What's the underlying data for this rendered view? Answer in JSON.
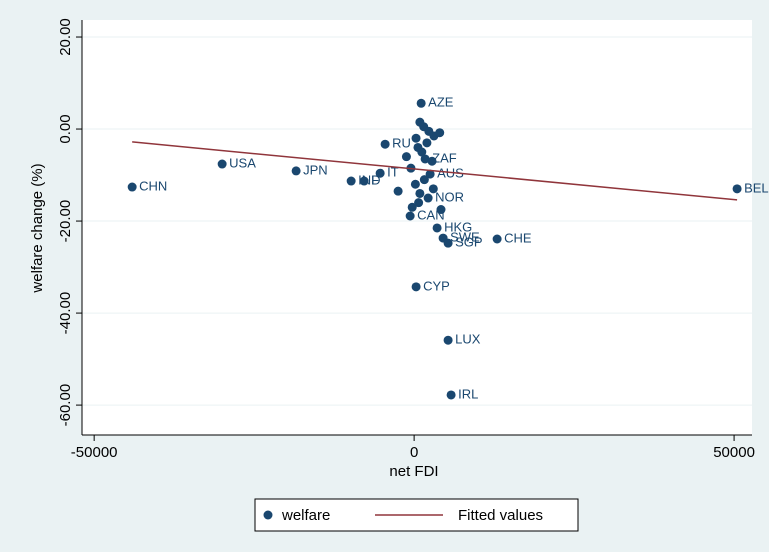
{
  "chart_data": {
    "type": "scatter",
    "x_label": "net FDI",
    "y_label": "welfare change (%)",
    "xlim": [
      -51900,
      52800
    ],
    "xticks": [
      -50000,
      0,
      50000
    ],
    "ylim": [
      -66.5,
      23.7
    ],
    "yticks": [
      {
        "value": -60,
        "label": "-60.00"
      },
      {
        "value": -40,
        "label": "-40.00"
      },
      {
        "value": -20,
        "label": "-20.00"
      },
      {
        "value": 0,
        "label": "0.00"
      },
      {
        "value": 20,
        "label": "20.00"
      }
    ],
    "grid": true,
    "legend": "bottom",
    "series": [
      {
        "name": "welfare",
        "type": "scatter",
        "color": "#1a476f",
        "x": [
          1100,
          -44060,
          -30000,
          -18440,
          -9840,
          50470,
          310,
          5310,
          5780,
          3590,
          12970,
          4530,
          5310,
          -4530,
          -7810,
          -5310,
          2190,
          -620,
          2500,
          1720,
          900,
          1500,
          2300,
          3100,
          4000,
          300,
          600,
          1200,
          2000,
          2800,
          -500,
          -1200,
          -2500,
          200,
          900,
          1600,
          3000,
          4200,
          -300,
          700
        ],
        "values": [
          5.6,
          -12.6,
          -7.6,
          -9.1,
          -11.3,
          -13.0,
          -34.3,
          -45.9,
          -57.8,
          -21.5,
          -23.9,
          -23.7,
          -24.8,
          -3.3,
          -11.3,
          -9.6,
          -15.0,
          -18.9,
          -9.8,
          -6.5,
          1.5,
          0.5,
          -0.5,
          -1.5,
          -0.8,
          -2.0,
          -4.0,
          -5.0,
          -3.0,
          -7.0,
          -8.5,
          -6.0,
          -13.5,
          -12.0,
          -14.0,
          -11.0,
          -13.0,
          -17.5,
          -17.0,
          -16.0
        ],
        "labels": [
          "AZE",
          "CHN",
          "USA",
          "JPN",
          "IND",
          "BEL",
          "CYP",
          "LUX",
          "IRL",
          "HKG",
          "CHE",
          "SWE",
          "SGP",
          "RU",
          "F",
          "IT",
          "NOR",
          "CAN",
          "AUS",
          "ZAF",
          null,
          null,
          null,
          null,
          null,
          null,
          null,
          null,
          null,
          null,
          null,
          null,
          null,
          null,
          null,
          null,
          null,
          null,
          null,
          null
        ]
      },
      {
        "name": "Fitted values",
        "type": "line",
        "color": "#90353b",
        "x": [
          -44060,
          50470
        ],
        "values": [
          -2.8,
          -15.4
        ]
      }
    ]
  }
}
